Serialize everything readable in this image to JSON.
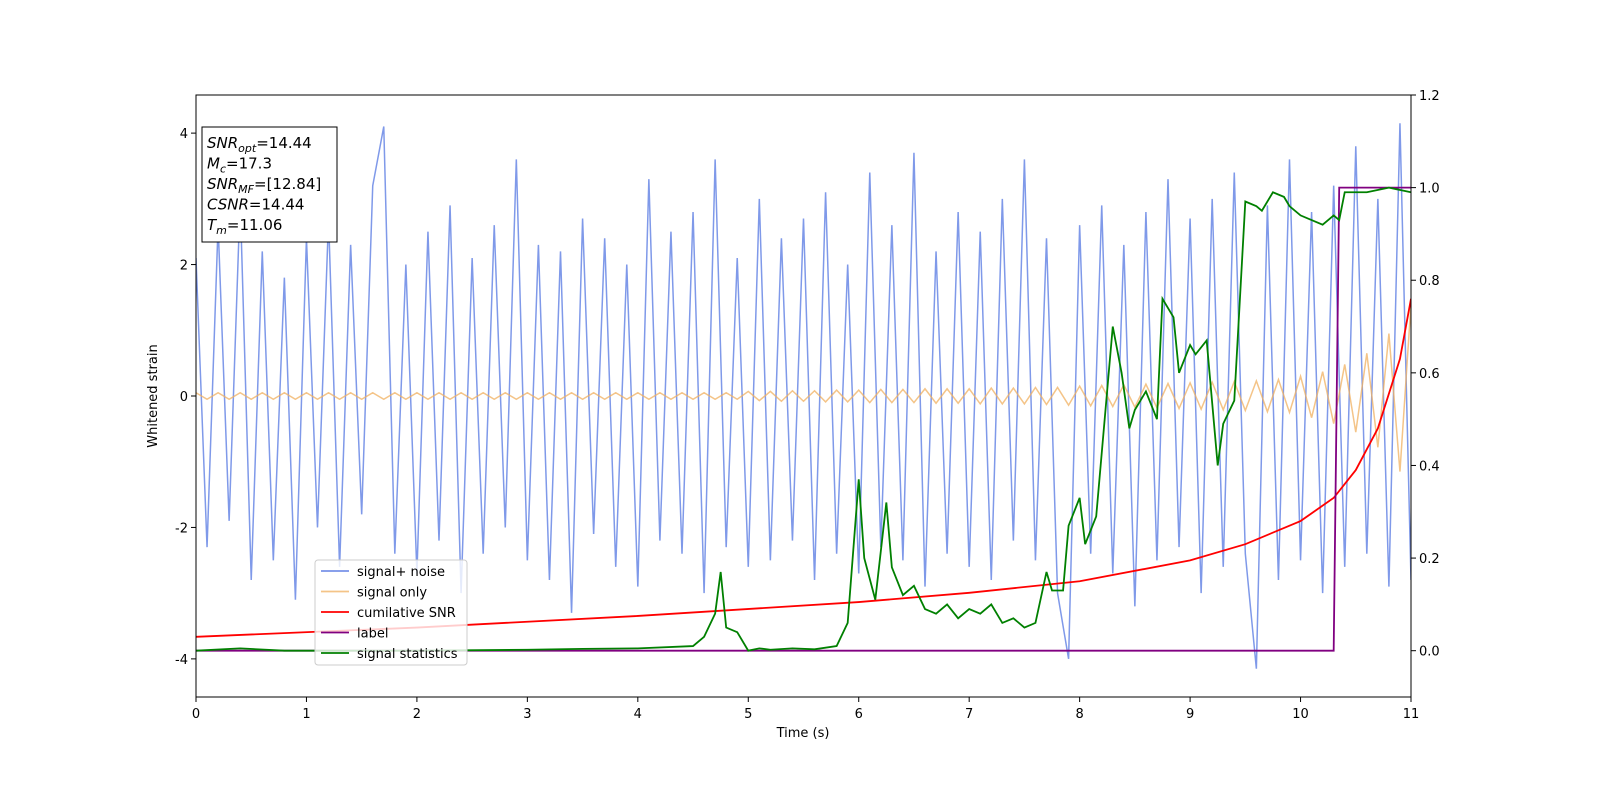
{
  "chart_data": {
    "type": "line",
    "xlabel": "Time (s)",
    "ylabel": "Whitened strain",
    "xlim": [
      0,
      11
    ],
    "xticks": [
      0,
      1,
      2,
      3,
      4,
      5,
      6,
      7,
      8,
      9,
      10,
      11
    ],
    "ylim": [
      -4.58,
      4.58
    ],
    "yticks": [
      -4,
      -2,
      0,
      2,
      4
    ],
    "y2lim": [
      -0.1,
      1.2
    ],
    "y2ticks": [
      {
        "value": 0,
        "label": "0.0"
      },
      0.2,
      0.4,
      0.6,
      0.8,
      {
        "value": 1,
        "label": "1.0"
      },
      1.2
    ],
    "legend": "lower left",
    "annotation": [
      {
        "main": "SNR",
        "sub": "opt",
        "rest": "=14.44"
      },
      {
        "main": "M",
        "sub": "c",
        "rest": "=17.3"
      },
      {
        "main": "SNR",
        "sub": "MF",
        "rest": "=[12.84]"
      },
      {
        "main": "CSNR",
        "rest": "=14.44"
      },
      {
        "main": "T",
        "sub": "m",
        "rest": "=11.06"
      }
    ],
    "x": [
      0,
      0.1,
      0.2,
      0.3,
      0.4,
      0.5,
      0.6,
      0.7,
      0.8,
      0.9,
      1,
      1.1,
      1.2,
      1.3,
      1.4,
      1.5,
      1.6,
      1.7,
      1.8,
      1.9,
      2,
      2.1,
      2.2,
      2.3,
      2.4,
      2.5,
      2.6,
      2.7,
      2.8,
      2.9,
      3,
      3.1,
      3.2,
      3.3,
      3.4,
      3.5,
      3.6,
      3.7,
      3.8,
      3.9,
      4,
      4.1,
      4.2,
      4.3,
      4.4,
      4.5,
      4.6,
      4.7,
      4.8,
      4.9,
      5,
      5.1,
      5.2,
      5.3,
      5.4,
      5.5,
      5.6,
      5.7,
      5.8,
      5.9,
      6,
      6.1,
      6.2,
      6.3,
      6.4,
      6.5,
      6.6,
      6.7,
      6.8,
      6.9,
      7,
      7.1,
      7.2,
      7.3,
      7.4,
      7.5,
      7.6,
      7.7,
      7.8,
      7.9,
      8,
      8.1,
      8.2,
      8.3,
      8.4,
      8.5,
      8.6,
      8.7,
      8.8,
      8.9,
      9,
      9.1,
      9.2,
      9.3,
      9.4,
      9.5,
      9.6,
      9.7,
      9.8,
      9.9,
      10,
      10.1,
      10.2,
      10.3,
      10.4,
      10.5,
      10.6,
      10.7,
      10.8,
      10.9,
      11
    ],
    "series": [
      {
        "name": "signal+ noise",
        "color": "#7893e8",
        "values": [
          2.1,
          -2.3,
          2.6,
          -1.9,
          3.0,
          -2.8,
          2.2,
          -2.5,
          1.8,
          -3.1,
          2.4,
          -2.0,
          2.7,
          -2.6,
          2.3,
          -1.8,
          3.2,
          4.1,
          -2.4,
          2.0,
          -2.7,
          2.5,
          -2.2,
          2.9,
          -3.0,
          2.1,
          -2.4,
          2.6,
          -2.0,
          3.6,
          -2.5,
          2.3,
          -2.8,
          2.2,
          -3.3,
          2.7,
          -2.1,
          2.4,
          -2.6,
          2.0,
          -2.9,
          3.3,
          -2.2,
          2.5,
          -2.4,
          2.8,
          -3.0,
          3.6,
          -2.3,
          2.1,
          -2.6,
          3.0,
          -2.5,
          2.4,
          -2.2,
          2.7,
          -2.8,
          3.1,
          -2.4,
          2.0,
          -2.7,
          3.4,
          -2.3,
          2.6,
          -2.5,
          3.7,
          -2.9,
          2.2,
          -2.4,
          2.8,
          -2.6,
          2.5,
          -2.8,
          3.0,
          -2.2,
          3.6,
          -2.5,
          2.4,
          -3.0,
          -4.0,
          2.6,
          -2.4,
          2.9,
          -2.7,
          2.3,
          -3.2,
          2.8,
          -2.5,
          3.3,
          -2.3,
          2.7,
          -3.0,
          3.0,
          -2.6,
          3.4,
          -2.4,
          -4.15,
          2.9,
          -2.8,
          3.6,
          -2.5,
          2.8,
          -3.0,
          3.2,
          -2.6,
          3.8,
          -2.4,
          3.0,
          -2.9,
          4.15,
          -2.8
        ]
      },
      {
        "name": "signal only",
        "color": "#f0b060",
        "values": [
          0.05,
          -0.05,
          0.05,
          -0.05,
          0.05,
          -0.05,
          0.05,
          -0.05,
          0.05,
          -0.05,
          0.05,
          -0.05,
          0.05,
          -0.05,
          0.05,
          -0.05,
          0.05,
          -0.05,
          0.05,
          -0.05,
          0.05,
          -0.05,
          0.05,
          -0.05,
          0.05,
          -0.05,
          0.05,
          -0.05,
          0.05,
          -0.05,
          0.05,
          -0.05,
          0.05,
          -0.05,
          0.05,
          -0.05,
          0.05,
          -0.05,
          0.05,
          -0.05,
          0.05,
          -0.05,
          0.05,
          -0.05,
          0.05,
          -0.05,
          0.05,
          -0.05,
          0.05,
          -0.05,
          0.07,
          -0.07,
          0.07,
          -0.08,
          0.08,
          -0.08,
          0.08,
          -0.09,
          0.09,
          -0.09,
          0.09,
          -0.1,
          0.1,
          -0.1,
          0.1,
          -0.1,
          0.11,
          -0.11,
          0.11,
          -0.11,
          0.11,
          -0.12,
          0.12,
          -0.12,
          0.12,
          -0.12,
          0.13,
          -0.13,
          0.13,
          -0.14,
          0.15,
          -0.15,
          0.16,
          -0.16,
          0.17,
          -0.17,
          0.18,
          -0.18,
          0.19,
          -0.19,
          0.2,
          -0.2,
          0.21,
          -0.21,
          0.22,
          -0.22,
          0.23,
          -0.24,
          0.25,
          -0.25,
          0.3,
          -0.33,
          0.37,
          -0.42,
          0.48,
          -0.55,
          0.65,
          -0.78,
          0.95,
          -1.15,
          1.4
        ]
      },
      {
        "name": "cumilative SNR",
        "color": "#ff0000",
        "axis": "y2",
        "x": [
          0,
          2,
          4,
          6,
          7,
          8,
          9,
          9.5,
          10,
          10.3,
          10.5,
          10.7,
          10.9,
          11
        ],
        "values": [
          0.03,
          0.05,
          0.075,
          0.105,
          0.125,
          0.15,
          0.195,
          0.23,
          0.28,
          0.33,
          0.39,
          0.48,
          0.63,
          0.76
        ]
      },
      {
        "name": "label",
        "color": "#800080",
        "axis": "y2",
        "x": [
          0,
          10.3,
          10.35,
          11
        ],
        "values": [
          0,
          0,
          1,
          1
        ]
      },
      {
        "name": "signal statistics",
        "color": "#008000",
        "axis": "y2",
        "x": [
          0,
          0.4,
          0.8,
          1,
          2,
          3,
          3.5,
          4,
          4.5,
          4.6,
          4.7,
          4.75,
          4.8,
          4.9,
          5,
          5.1,
          5.2,
          5.4,
          5.6,
          5.8,
          5.9,
          6,
          6.05,
          6.15,
          6.25,
          6.3,
          6.4,
          6.5,
          6.6,
          6.7,
          6.8,
          6.9,
          7,
          7.1,
          7.2,
          7.3,
          7.4,
          7.5,
          7.6,
          7.7,
          7.75,
          7.85,
          7.9,
          8,
          8.05,
          8.15,
          8.3,
          8.38,
          8.45,
          8.5,
          8.6,
          8.7,
          8.75,
          8.85,
          8.9,
          9,
          9.05,
          9.15,
          9.25,
          9.3,
          9.4,
          9.5,
          9.6,
          9.65,
          9.75,
          9.85,
          9.9,
          10,
          10.1,
          10.2,
          10.3,
          10.35,
          10.4,
          10.6,
          10.8,
          11
        ],
        "values": [
          0,
          0.005,
          0,
          0,
          0,
          0.002,
          0.004,
          0.005,
          0.01,
          0.03,
          0.08,
          0.17,
          0.05,
          0.04,
          0,
          0.005,
          0.002,
          0.005,
          0.003,
          0.01,
          0.06,
          0.37,
          0.2,
          0.11,
          0.32,
          0.18,
          0.12,
          0.14,
          0.09,
          0.08,
          0.1,
          0.07,
          0.09,
          0.08,
          0.1,
          0.06,
          0.07,
          0.05,
          0.06,
          0.17,
          0.13,
          0.13,
          0.27,
          0.33,
          0.23,
          0.29,
          0.7,
          0.6,
          0.48,
          0.52,
          0.56,
          0.5,
          0.76,
          0.72,
          0.6,
          0.66,
          0.64,
          0.67,
          0.4,
          0.49,
          0.54,
          0.97,
          0.96,
          0.95,
          0.99,
          0.98,
          0.96,
          0.94,
          0.93,
          0.92,
          0.94,
          0.93,
          0.99,
          0.99,
          1.0,
          0.99
        ]
      }
    ]
  }
}
